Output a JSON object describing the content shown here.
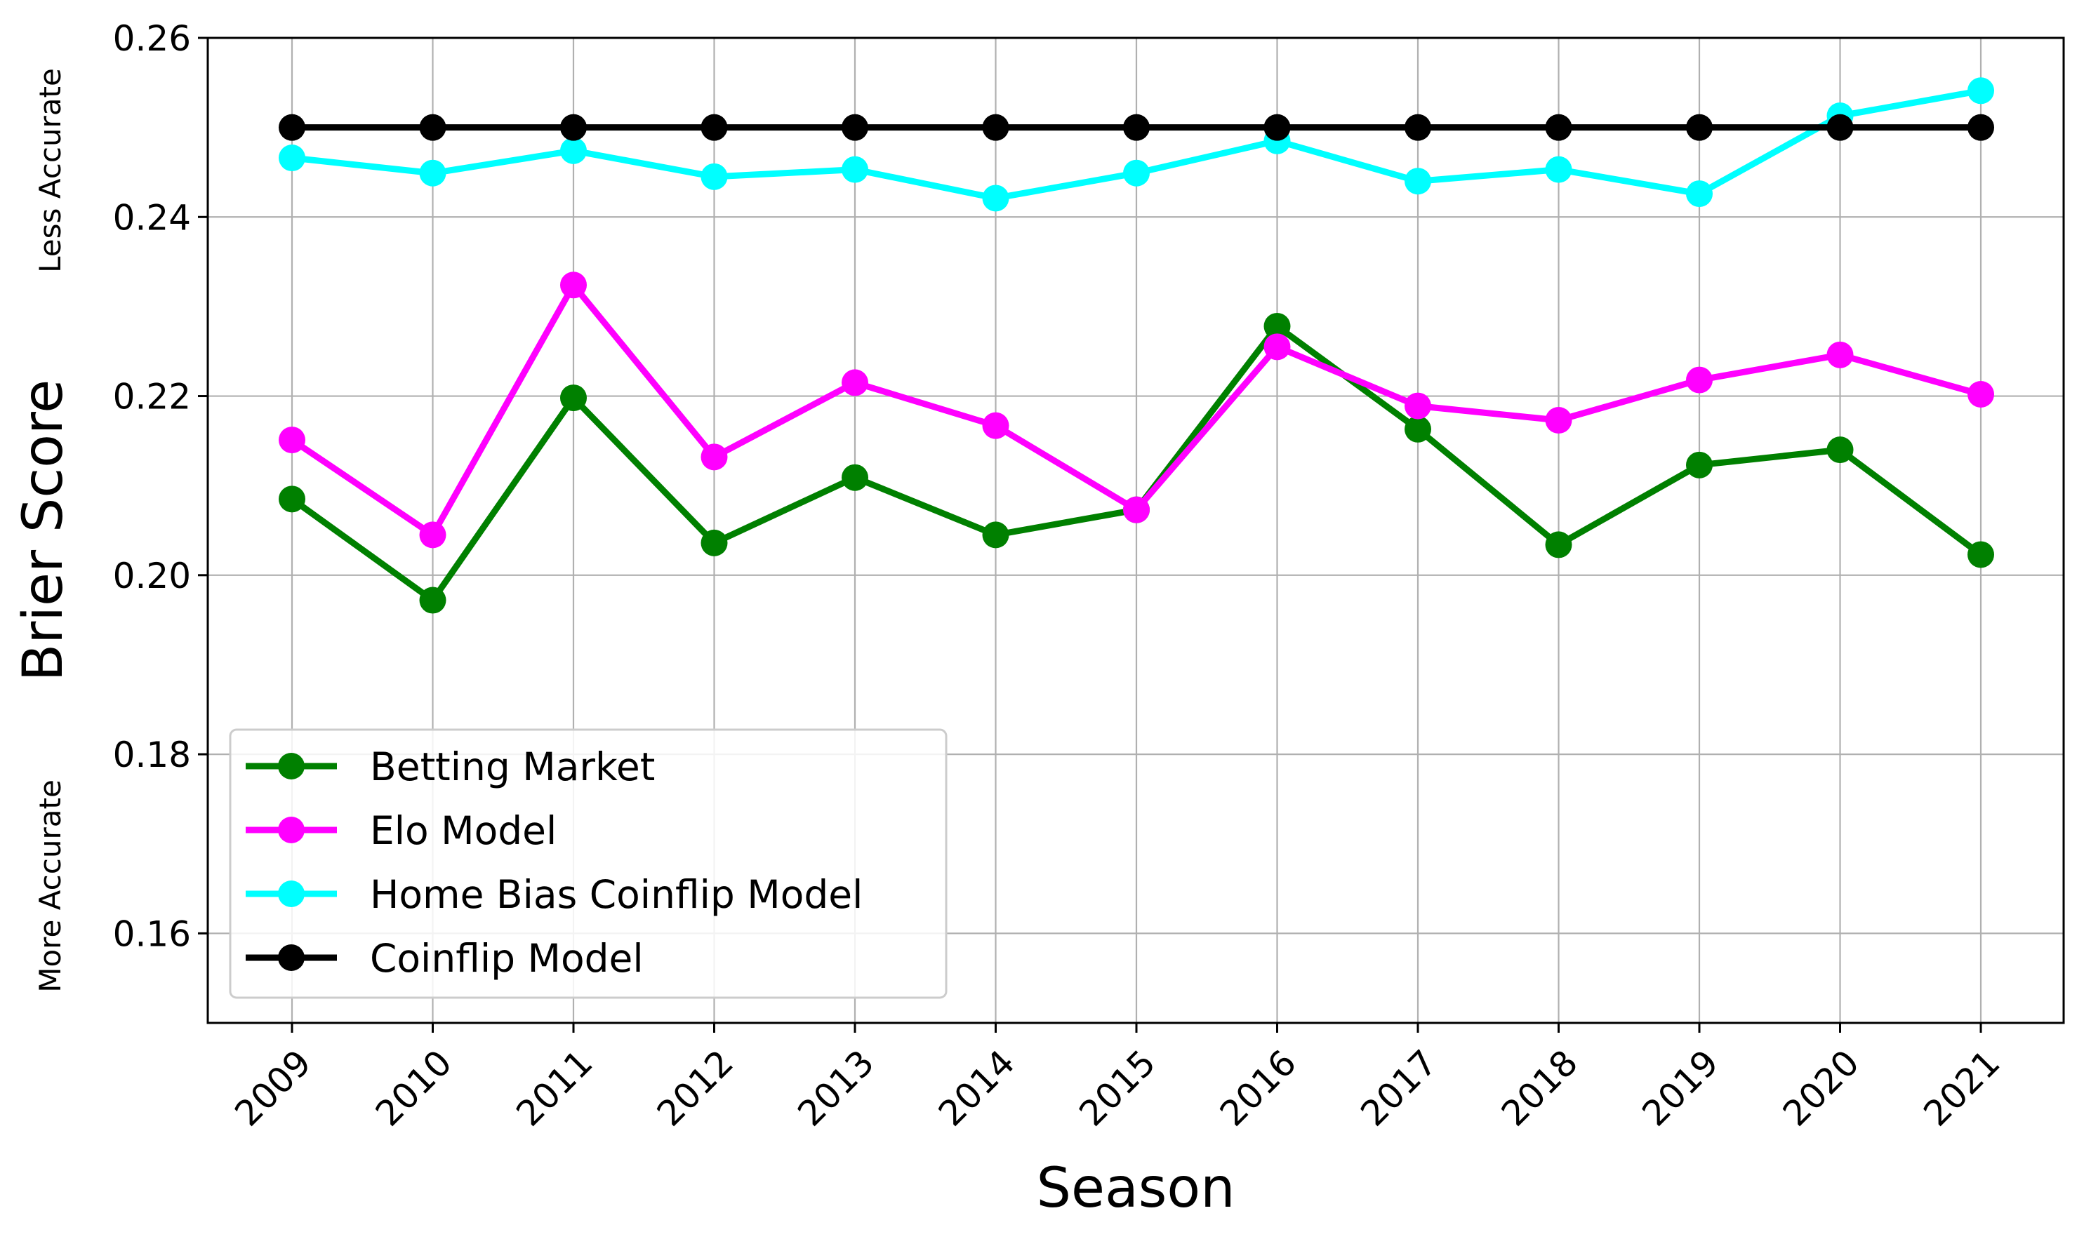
{
  "chart_data": {
    "type": "line",
    "xlabel": "Season",
    "ylabel": "Brier Score",
    "annotations": {
      "top": "Less Accurate",
      "bottom": "More Accurate"
    },
    "x": [
      "2009",
      "2010",
      "2011",
      "2012",
      "2013",
      "2014",
      "2015",
      "2016",
      "2017",
      "2018",
      "2019",
      "2020",
      "2021"
    ],
    "ylim": [
      0.15,
      0.26
    ],
    "yticks": [
      0.16,
      0.18,
      0.2,
      0.22,
      0.24,
      0.26
    ],
    "ytick_labels": [
      "0.16",
      "0.18",
      "0.20",
      "0.22",
      "0.24",
      "0.26"
    ],
    "grid": true,
    "legend_position": "lower-left",
    "series": [
      {
        "name": "Betting Market",
        "color": "#008000",
        "values": [
          0.2085,
          0.1972,
          0.2198,
          0.2036,
          0.2109,
          0.2045,
          0.2073,
          0.2278,
          0.2163,
          0.2034,
          0.2123,
          0.214,
          0.2023
        ]
      },
      {
        "name": "Elo Model",
        "color": "#ff00ff",
        "values": [
          0.2151,
          0.2045,
          0.2324,
          0.2132,
          0.2215,
          0.2167,
          0.2073,
          0.2255,
          0.2189,
          0.2173,
          0.2218,
          0.2246,
          0.2202
        ]
      },
      {
        "name": "Home Bias Coinflip Model",
        "color": "#00ffff",
        "values": [
          0.2466,
          0.2449,
          0.2474,
          0.2445,
          0.2453,
          0.2421,
          0.2449,
          0.2485,
          0.244,
          0.2453,
          0.2426,
          0.2513,
          0.2541
        ]
      },
      {
        "name": "Coinflip Model",
        "color": "#000000",
        "values": [
          0.25,
          0.25,
          0.25,
          0.25,
          0.25,
          0.25,
          0.25,
          0.25,
          0.25,
          0.25,
          0.25,
          0.25,
          0.25
        ]
      }
    ]
  }
}
